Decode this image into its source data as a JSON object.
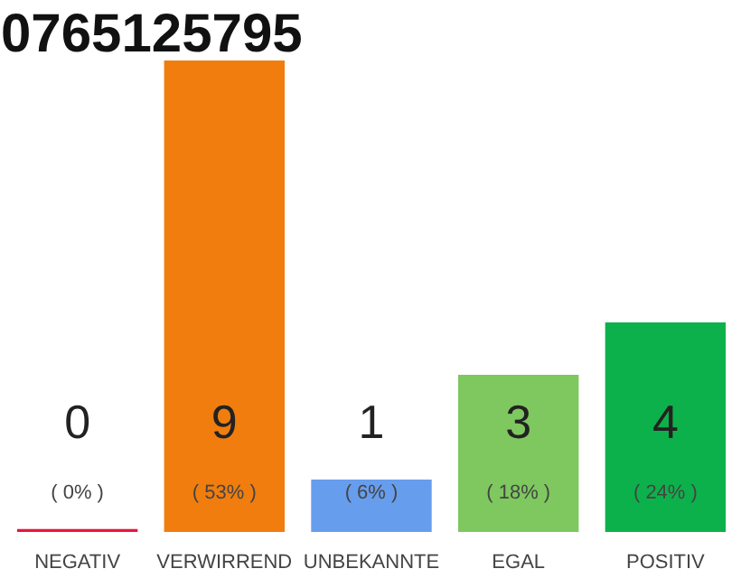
{
  "chart_data": {
    "type": "bar",
    "title": "0765125795",
    "categories": [
      "NEGATIV",
      "VERWIRREND",
      "UNBEKANNTE",
      "EGAL",
      "POSITIV"
    ],
    "values": [
      0,
      9,
      1,
      3,
      4
    ],
    "colors": [
      "#e8163c",
      "#f07d0e",
      "#679ded",
      "#7ec85f",
      "#0db14b"
    ],
    "value_labels": [
      "0\n( 0% )",
      "9\n( 53% )",
      "1\n( 6% )",
      "3\n( 18% )",
      "4\n( 24% )"
    ],
    "grid": false
  }
}
